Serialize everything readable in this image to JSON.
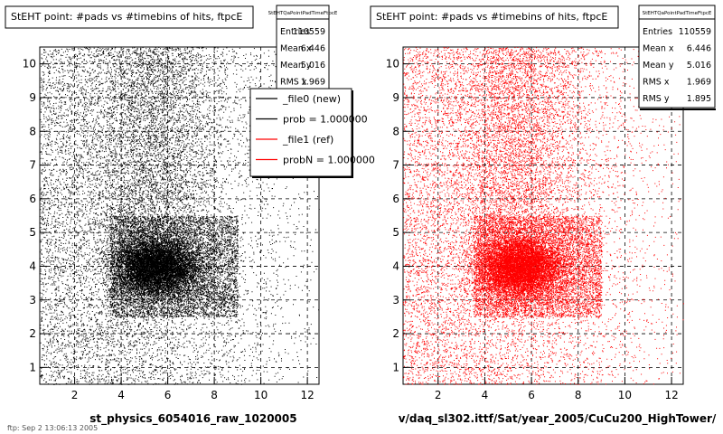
{
  "chart_data": [
    {
      "type": "scatter",
      "title": "StEHT point: #pads vs #timebins of hits, ftpcE",
      "xlabel": "st_physics_6054016_raw_1020005",
      "ylabel": "",
      "xlim": [
        0.5,
        12.5
      ],
      "ylim": [
        0.5,
        10.5
      ],
      "x_ticks": [
        "2",
        "4",
        "6",
        "8",
        "10",
        "12"
      ],
      "y_ticks": [
        "1",
        "2",
        "3",
        "4",
        "5",
        "6",
        "7",
        "8",
        "9",
        "10"
      ],
      "grid": true,
      "color": "#000000",
      "density": {
        "dense_region_x": [
          3.5,
          9.0
        ],
        "dense_region_y": [
          2.5,
          5.5
        ],
        "peak": [
          5.5,
          4.0
        ]
      },
      "stats": {
        "name": "StEHTQaPointPadTimeFtpcE",
        "rows": [
          {
            "label": "Entries",
            "value": "110559"
          },
          {
            "label": "Mean x",
            "value": "6.446"
          },
          {
            "label": "Mean y",
            "value": "5.016"
          },
          {
            "label": "RMS x",
            "value": "1.969"
          }
        ]
      },
      "legend": {
        "position": "top-right",
        "entries": [
          {
            "label": "_file0 (new)",
            "color": "#000000"
          },
          {
            "label": "prob = 1.000000",
            "color": "#000000"
          },
          {
            "label": "_file1 (ref)",
            "color": "#ff0000"
          },
          {
            "label": "probN = 1.000000",
            "color": "#ff0000"
          }
        ]
      },
      "footer": "ftp: Sep 2 13:06:13 2005"
    },
    {
      "type": "scatter",
      "title": "StEHT point: #pads vs #timebins of hits, ftpcE",
      "xlabel": "v/daq_sl302.ittf/Sat/year_2005/CuCu200_HighTower/",
      "ylabel": "",
      "xlim": [
        0.5,
        12.5
      ],
      "ylim": [
        0.5,
        10.5
      ],
      "x_ticks": [
        "2",
        "4",
        "6",
        "8",
        "10",
        "12"
      ],
      "y_ticks": [
        "1",
        "2",
        "3",
        "4",
        "5",
        "6",
        "7",
        "8",
        "9",
        "10"
      ],
      "grid": true,
      "color": "#ff0000",
      "density": {
        "dense_region_x": [
          3.5,
          9.0
        ],
        "dense_region_y": [
          2.5,
          5.5
        ],
        "peak": [
          5.5,
          4.0
        ]
      },
      "stats": {
        "name": "StEHTQaPointPadTimeFtpcE",
        "rows": [
          {
            "label": "Entries",
            "value": "110559"
          },
          {
            "label": "Mean x",
            "value": "6.446"
          },
          {
            "label": "Mean y",
            "value": "5.016"
          },
          {
            "label": "RMS x",
            "value": "1.969"
          },
          {
            "label": "RMS y",
            "value": "1.895"
          }
        ]
      }
    }
  ]
}
